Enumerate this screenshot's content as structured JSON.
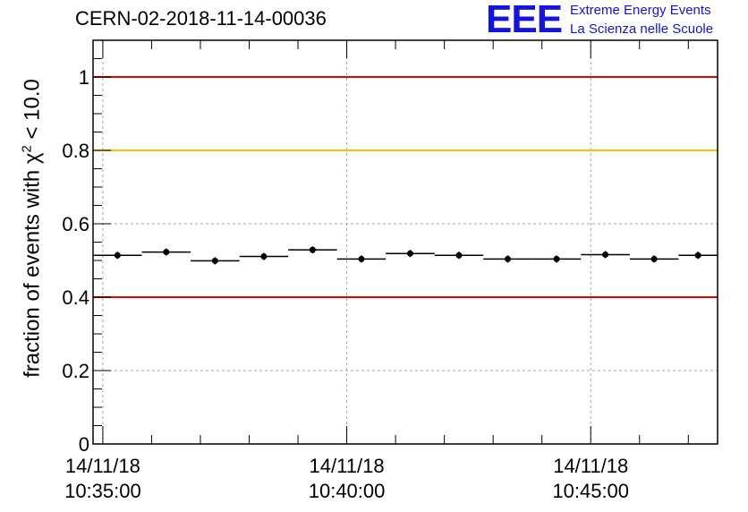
{
  "title": "CERN-02-2018-11-14-00036",
  "logo": {
    "mark": "EEE",
    "line1": "Extreme Energy Events",
    "line2": "La Scienza nelle Scuole"
  },
  "colors": {
    "red_line": "#e60000",
    "yellow_line": "#ffbf00",
    "grid": "#a6a6a6",
    "logo": "#1414e0"
  },
  "chart_data": {
    "type": "scatter",
    "title": "CERN-02-2018-11-14-00036",
    "ylabel_prefix": "fraction of events with ",
    "ylabel_symbol": "χ",
    "ylabel_exp": "2",
    "ylabel_suffix": " < 10.0",
    "xlabel": "",
    "x_axis": {
      "type": "time",
      "range": [
        "10:34:48",
        "10:47:36"
      ]
    },
    "ylim": [
      0,
      1.1
    ],
    "grid": true,
    "y_ticks": [
      {
        "value": 0,
        "label": "0"
      },
      {
        "value": 0.2,
        "label": "0.2"
      },
      {
        "value": 0.4,
        "label": "0.4"
      },
      {
        "value": 0.6,
        "label": "0.6"
      },
      {
        "value": 0.8,
        "label": "0.8"
      },
      {
        "value": 1,
        "label": "1"
      }
    ],
    "x_ticks": [
      {
        "time": "10:35:00",
        "date_label": "14/11/18",
        "time_label": "10:35:00"
      },
      {
        "time": "10:40:00",
        "date_label": "14/11/18",
        "time_label": "10:40:00"
      },
      {
        "time": "10:45:00",
        "date_label": "14/11/18",
        "time_label": "10:45:00"
      }
    ],
    "reference_lines": [
      {
        "y": 1.0,
        "color": "#e60000"
      },
      {
        "y": 0.8,
        "color": "#ffbf00"
      },
      {
        "y": 0.4,
        "color": "#e60000"
      }
    ],
    "series": [
      {
        "points": [
          {
            "x_start": "10:34:48",
            "x_end": "10:35:48",
            "y": 0.514
          },
          {
            "x_start": "10:35:48",
            "x_end": "10:36:48",
            "y": 0.523
          },
          {
            "x_start": "10:36:48",
            "x_end": "10:37:48",
            "y": 0.499
          },
          {
            "x_start": "10:37:48",
            "x_end": "10:38:48",
            "y": 0.511
          },
          {
            "x_start": "10:38:48",
            "x_end": "10:39:48",
            "y": 0.529
          },
          {
            "x_start": "10:39:48",
            "x_end": "10:40:48",
            "y": 0.504
          },
          {
            "x_start": "10:40:48",
            "x_end": "10:41:48",
            "y": 0.519
          },
          {
            "x_start": "10:41:48",
            "x_end": "10:42:48",
            "y": 0.514
          },
          {
            "x_start": "10:42:48",
            "x_end": "10:43:48",
            "y": 0.504
          },
          {
            "x_start": "10:43:48",
            "x_end": "10:44:48",
            "y": 0.504
          },
          {
            "x_start": "10:44:48",
            "x_end": "10:45:48",
            "y": 0.516
          },
          {
            "x_start": "10:45:48",
            "x_end": "10:46:48",
            "y": 0.504
          },
          {
            "x_start": "10:46:48",
            "x_end": "10:47:36",
            "y": 0.514
          }
        ]
      }
    ]
  }
}
